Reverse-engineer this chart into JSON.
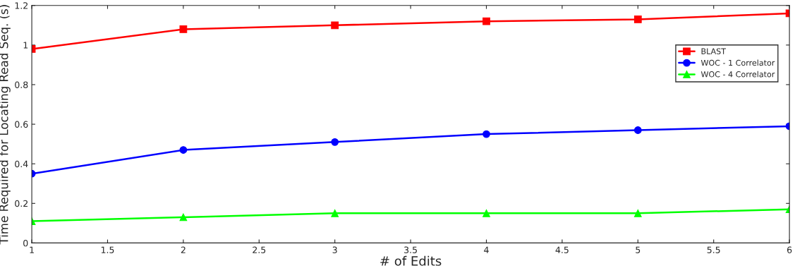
{
  "chart_data": {
    "type": "line",
    "xlabel": "# of Edits",
    "ylabel": "Time Required for Locating Read Seq. (s)",
    "x": [
      1,
      2,
      3,
      4,
      5,
      6
    ],
    "series": [
      {
        "name": "BLAST",
        "color": "#ff0000",
        "marker": "square",
        "values": [
          0.98,
          1.08,
          1.1,
          1.12,
          1.13,
          1.16
        ]
      },
      {
        "name": "WOC - 1 Correlator",
        "color": "#0000ff",
        "marker": "circle",
        "values": [
          0.35,
          0.47,
          0.51,
          0.55,
          0.57,
          0.59
        ]
      },
      {
        "name": "WOC - 4 Correlator",
        "color": "#00ff00",
        "marker": "triangle",
        "values": [
          0.11,
          0.13,
          0.15,
          0.15,
          0.15,
          0.17
        ]
      }
    ],
    "xlim": [
      1,
      6
    ],
    "xticks": [
      1,
      {
        "value": 1.5,
        "label": "1.5"
      },
      2,
      {
        "value": 2.5,
        "label": "2.5"
      },
      3,
      {
        "value": 3.5,
        "label": "3.5"
      },
      4,
      {
        "value": 4.5,
        "label": "4.5"
      },
      5,
      {
        "value": 5.5,
        "label": "5.5"
      },
      6
    ],
    "ylim": [
      0,
      1.2
    ],
    "yticks": [
      0,
      0.2,
      0.4,
      0.6,
      0.8,
      1,
      1.2
    ],
    "grid": false,
    "legend": "top right",
    "line_style": "solid"
  }
}
